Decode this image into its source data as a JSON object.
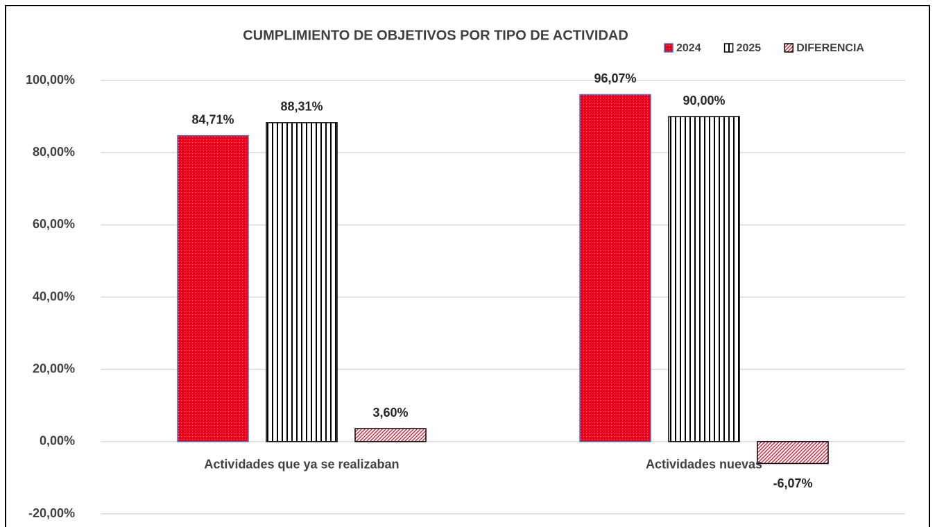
{
  "chart_data": {
    "type": "bar",
    "title": "CUMPLIMIENTO DE OBJETIVOS POR TIPO DE ACTIVIDAD",
    "categories": [
      "Actividades que ya se realizaban",
      "Actividades nuevas"
    ],
    "series": [
      {
        "name": "2024",
        "color": "#e8001c",
        "values": [
          84.71,
          96.07
        ],
        "value_labels": [
          "84,71%",
          "96,07%"
        ]
      },
      {
        "name": "2025",
        "color": "#000000",
        "values": [
          88.31,
          90.0
        ],
        "value_labels": [
          "88,31%",
          "90,00%"
        ]
      },
      {
        "name": "DIFERENCIA",
        "color": "#e8001c",
        "values": [
          3.6,
          -6.07
        ],
        "value_labels": [
          "3,60%",
          "-6,07%"
        ]
      }
    ],
    "ylim": [
      -20,
      100
    ],
    "yticks": [
      {
        "value": -20,
        "label": "-20,00%"
      },
      {
        "value": 0,
        "label": "0,00%"
      },
      {
        "value": 20,
        "label": "20,00%"
      },
      {
        "value": 40,
        "label": "40,00%"
      },
      {
        "value": 60,
        "label": "60,00%"
      },
      {
        "value": 80,
        "label": "80,00%"
      },
      {
        "value": 100,
        "label": "100,00%"
      }
    ],
    "grid": true,
    "legend": "top-right"
  }
}
